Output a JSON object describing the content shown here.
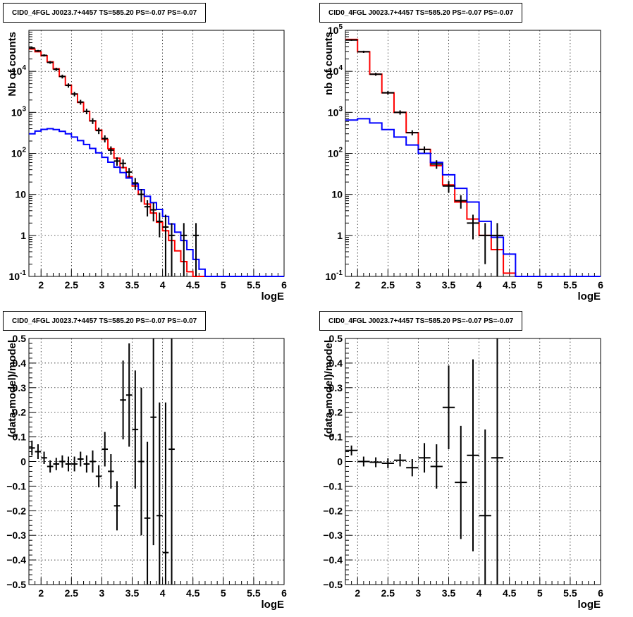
{
  "chart_data": [
    {
      "type": "line",
      "title": "CID0_4FGL J0023.7+4457 TS=585.20 PS=-0.07 PS=-0.07",
      "xlabel": "logE",
      "ylabel": "Nb of counts",
      "xlim": [
        1.8,
        6
      ],
      "ylim": [
        0.1,
        100000
      ],
      "yscale": "log",
      "grid": true,
      "xticks": [
        "2",
        "2.5",
        "3",
        "3.5",
        "4",
        "4.5",
        "5",
        "5.5",
        "6"
      ],
      "yticks": [
        "10^-1",
        "1",
        "10",
        "10^2",
        "10^3",
        "10^4"
      ],
      "bin_edges": [
        1.8,
        1.9,
        2.0,
        2.1,
        2.2,
        2.3,
        2.4,
        2.5,
        2.6,
        2.7,
        2.8,
        2.9,
        3.0,
        3.1,
        3.2,
        3.3,
        3.4,
        3.5,
        3.6,
        3.7,
        3.8,
        3.9,
        4.0,
        4.1,
        4.2,
        4.3,
        4.4,
        4.5,
        4.6,
        4.7,
        4.8,
        4.9,
        5.0,
        5.1,
        5.2,
        5.3,
        5.4,
        5.5,
        5.6,
        5.7,
        5.8,
        5.9,
        6.0
      ],
      "series": [
        {
          "color": "#ff0000",
          "style": "step",
          "values": [
            35000,
            30000,
            24000,
            17000,
            11500,
            7500,
            4600,
            2800,
            1750,
            1050,
            620,
            370,
            220,
            130,
            76,
            45,
            27,
            16,
            10,
            5.8,
            3.5,
            2.1,
            1.3,
            0.75,
            0.42,
            0.23,
            0.13,
            0.1,
            0.1,
            0.1,
            0.1,
            0.1,
            0.1,
            0.1,
            0.1,
            0.1,
            0.1,
            0.1,
            0.1,
            0.1,
            0.1,
            0.1
          ]
        },
        {
          "color": "#0000ff",
          "style": "step",
          "values": [
            300,
            350,
            385,
            400,
            380,
            345,
            300,
            250,
            205,
            165,
            132,
            103,
            80,
            61,
            46,
            34,
            25,
            18,
            13,
            9,
            6.3,
            4.3,
            2.9,
            1.9,
            1.2,
            0.75,
            0.45,
            0.26,
            0.15,
            0.1,
            0.1,
            0.1,
            0.1,
            0.1,
            0.1,
            0.1,
            0.1,
            0.1,
            0.1,
            0.1,
            0.1,
            0.1
          ]
        }
      ],
      "points": [
        {
          "x": 1.85,
          "y": 37000,
          "lo": 35000,
          "hi": 39000
        },
        {
          "x": 1.95,
          "y": 31500,
          "lo": 29800,
          "hi": 33300
        },
        {
          "x": 2.05,
          "y": 24500,
          "lo": 23000,
          "hi": 26000
        },
        {
          "x": 2.15,
          "y": 16500,
          "lo": 15300,
          "hi": 17800
        },
        {
          "x": 2.25,
          "y": 11200,
          "lo": 10200,
          "hi": 12200
        },
        {
          "x": 2.35,
          "y": 7500,
          "lo": 6700,
          "hi": 8300
        },
        {
          "x": 2.45,
          "y": 4550,
          "lo": 4000,
          "hi": 5100
        },
        {
          "x": 2.55,
          "y": 2800,
          "lo": 2450,
          "hi": 3150
        },
        {
          "x": 2.65,
          "y": 1780,
          "lo": 1540,
          "hi": 2020
        },
        {
          "x": 2.75,
          "y": 1060,
          "lo": 900,
          "hi": 1220
        },
        {
          "x": 2.85,
          "y": 620,
          "lo": 520,
          "hi": 720
        },
        {
          "x": 2.95,
          "y": 360,
          "lo": 295,
          "hi": 425
        },
        {
          "x": 3.05,
          "y": 230,
          "lo": 185,
          "hi": 275
        },
        {
          "x": 3.15,
          "y": 120,
          "lo": 92,
          "hi": 148
        },
        {
          "x": 3.25,
          "y": 65,
          "lo": 50,
          "hi": 80
        },
        {
          "x": 3.35,
          "y": 57,
          "lo": 43,
          "hi": 71
        },
        {
          "x": 3.45,
          "y": 35,
          "lo": 26,
          "hi": 44
        },
        {
          "x": 3.55,
          "y": 19,
          "lo": 13,
          "hi": 25
        },
        {
          "x": 3.65,
          "y": 10,
          "lo": 6.5,
          "hi": 13.5
        },
        {
          "x": 3.75,
          "y": 5,
          "lo": 2.9,
          "hi": 7.2
        },
        {
          "x": 3.85,
          "y": 4.2,
          "lo": 2.2,
          "hi": 6.2
        },
        {
          "x": 3.95,
          "y": 2.2,
          "lo": 0.9,
          "hi": 3.6
        },
        {
          "x": 4.05,
          "y": 1.6,
          "lo": 0.1,
          "hi": 3.2
        },
        {
          "x": 4.15,
          "y": 1.0,
          "lo": 0.1,
          "hi": 2.0
        },
        {
          "x": 4.35,
          "y": 1.0,
          "lo": 0.1,
          "hi": 2.0
        },
        {
          "x": 4.55,
          "y": 1.0,
          "lo": 0.1,
          "hi": 2.0
        }
      ]
    },
    {
      "type": "line",
      "title": "CID0_4FGL J0023.7+4457 TS=585.20 PS=-0.07 PS=-0.07",
      "xlabel": "logE",
      "ylabel": "nb of counts",
      "xlim": [
        1.8,
        6
      ],
      "ylim": [
        0.1,
        100000
      ],
      "yscale": "log",
      "grid": true,
      "xticks": [
        "2",
        "2.5",
        "3",
        "3.5",
        "4",
        "4.5",
        "5",
        "5.5",
        "6"
      ],
      "yticks": [
        "10^-1",
        "1",
        "10",
        "10^2",
        "10^3",
        "10^4",
        "10^5"
      ],
      "bin_edges": [
        1.8,
        2.0,
        2.2,
        2.4,
        2.6,
        2.8,
        3.0,
        3.2,
        3.4,
        3.6,
        3.8,
        4.0,
        4.2,
        4.4,
        4.6,
        4.8,
        5.0,
        5.2,
        5.4,
        5.6,
        5.8,
        6.0
      ],
      "series": [
        {
          "color": "#ff0000",
          "style": "step",
          "values": [
            60000,
            30000,
            8500,
            3000,
            1000,
            320,
            125,
            50,
            17,
            6.5,
            2.5,
            1.0,
            0.45,
            0.12,
            0.1,
            0.1,
            0.1,
            0.1,
            0.1,
            0.1,
            0.1
          ]
        },
        {
          "color": "#0000ff",
          "style": "step",
          "values": [
            650,
            700,
            550,
            380,
            250,
            160,
            100,
            60,
            30,
            14,
            6.5,
            2.2,
            0.9,
            0.35,
            0.1,
            0.1,
            0.1,
            0.1,
            0.1,
            0.1,
            0.1
          ]
        }
      ],
      "points": [
        {
          "x": 1.9,
          "y": 58000,
          "lo": 55500,
          "hi": 60500
        },
        {
          "x": 2.1,
          "y": 30000,
          "lo": 28200,
          "hi": 31800
        },
        {
          "x": 2.3,
          "y": 8500,
          "lo": 7800,
          "hi": 9200
        },
        {
          "x": 2.5,
          "y": 3000,
          "lo": 2700,
          "hi": 3300
        },
        {
          "x": 2.7,
          "y": 1000,
          "lo": 880,
          "hi": 1120
        },
        {
          "x": 2.9,
          "y": 320,
          "lo": 275,
          "hi": 365
        },
        {
          "x": 3.1,
          "y": 125,
          "lo": 102,
          "hi": 148
        },
        {
          "x": 3.3,
          "y": 55,
          "lo": 42,
          "hi": 68
        },
        {
          "x": 3.5,
          "y": 16,
          "lo": 11,
          "hi": 21
        },
        {
          "x": 3.7,
          "y": 7,
          "lo": 4.5,
          "hi": 9.5
        },
        {
          "x": 3.9,
          "y": 2,
          "lo": 0.8,
          "hi": 3.2
        },
        {
          "x": 4.1,
          "y": 1,
          "lo": 0.2,
          "hi": 2.0
        },
        {
          "x": 4.3,
          "y": 1,
          "lo": 0.1,
          "hi": 2.0
        }
      ]
    },
    {
      "type": "scatter",
      "title": "CID0_4FGL J0023.7+4457 TS=585.20 PS=-0.07 PS=-0.07",
      "xlabel": "logE",
      "ylabel": "(data-model)/model",
      "xlim": [
        1.8,
        6
      ],
      "ylim": [
        -0.5,
        0.5
      ],
      "grid": true,
      "xticks": [
        "2",
        "2.5",
        "3",
        "3.5",
        "4",
        "4.5",
        "5",
        "5.5",
        "6"
      ],
      "yticks": [
        "−0.5",
        "−0.4",
        "−0.3",
        "−0.2",
        "−0.1",
        "0",
        "0.1",
        "0.2",
        "0.3",
        "0.4",
        "0.5"
      ],
      "half_width": 0.05,
      "points": [
        {
          "x": 1.85,
          "y": 0.055,
          "err": 0.03
        },
        {
          "x": 1.95,
          "y": 0.04,
          "err": 0.03
        },
        {
          "x": 2.05,
          "y": 0.015,
          "err": 0.025
        },
        {
          "x": 2.15,
          "y": -0.02,
          "err": 0.025
        },
        {
          "x": 2.25,
          "y": -0.01,
          "err": 0.025
        },
        {
          "x": 2.35,
          "y": 0.0,
          "err": 0.025
        },
        {
          "x": 2.45,
          "y": -0.01,
          "err": 0.03
        },
        {
          "x": 2.55,
          "y": -0.01,
          "err": 0.03
        },
        {
          "x": 2.65,
          "y": 0.01,
          "err": 0.03
        },
        {
          "x": 2.75,
          "y": -0.01,
          "err": 0.035
        },
        {
          "x": 2.85,
          "y": 0.0,
          "err": 0.045
        },
        {
          "x": 2.95,
          "y": -0.06,
          "err": 0.045
        },
        {
          "x": 3.05,
          "y": 0.05,
          "err": 0.07
        },
        {
          "x": 3.15,
          "y": -0.04,
          "err": 0.07
        },
        {
          "x": 3.25,
          "y": -0.18,
          "err": 0.1
        },
        {
          "x": 3.35,
          "y": 0.25,
          "err": 0.16
        },
        {
          "x": 3.45,
          "y": 0.27,
          "err": 0.21
        },
        {
          "x": 3.55,
          "y": 0.13,
          "err": 0.24
        },
        {
          "x": 3.65,
          "y": 0.0,
          "err": 0.3
        },
        {
          "x": 3.75,
          "y": -0.23,
          "err": 0.31
        },
        {
          "x": 3.85,
          "y": 0.18,
          "err": 0.52
        },
        {
          "x": 3.95,
          "y": -0.22,
          "err": 0.46
        },
        {
          "x": 4.05,
          "y": -0.37,
          "err": 0.61
        },
        {
          "x": 4.15,
          "y": 0.05,
          "err": 1.0
        }
      ]
    },
    {
      "type": "scatter",
      "title": "CID0_4FGL J0023.7+4457 TS=585.20 PS=-0.07 PS=-0.07",
      "xlabel": "logE",
      "ylabel": "(data-model)/model",
      "xlim": [
        1.8,
        6
      ],
      "ylim": [
        -0.5,
        0.5
      ],
      "grid": true,
      "xticks": [
        "2",
        "2.5",
        "3",
        "3.5",
        "4",
        "4.5",
        "5",
        "5.5",
        "6"
      ],
      "yticks": [
        "−0.5",
        "−0.4",
        "−0.3",
        "−0.2",
        "−0.1",
        "0",
        "0.1",
        "0.2",
        "0.3",
        "0.4",
        "0.5"
      ],
      "half_width": 0.1,
      "points": [
        {
          "x": 1.9,
          "y": 0.045,
          "err": 0.02
        },
        {
          "x": 2.1,
          "y": 0.0,
          "err": 0.02
        },
        {
          "x": 2.3,
          "y": -0.003,
          "err": 0.02
        },
        {
          "x": 2.5,
          "y": -0.007,
          "err": 0.02
        },
        {
          "x": 2.7,
          "y": 0.005,
          "err": 0.025
        },
        {
          "x": 2.9,
          "y": -0.025,
          "err": 0.035
        },
        {
          "x": 3.1,
          "y": 0.015,
          "err": 0.06
        },
        {
          "x": 3.3,
          "y": -0.02,
          "err": 0.09
        },
        {
          "x": 3.5,
          "y": 0.22,
          "err": 0.17
        },
        {
          "x": 3.7,
          "y": -0.085,
          "err": 0.23
        },
        {
          "x": 3.9,
          "y": 0.025,
          "err": 0.39
        },
        {
          "x": 4.1,
          "y": -0.22,
          "err": 0.35
        },
        {
          "x": 4.3,
          "y": 0.015,
          "err": 0.8
        }
      ]
    }
  ]
}
